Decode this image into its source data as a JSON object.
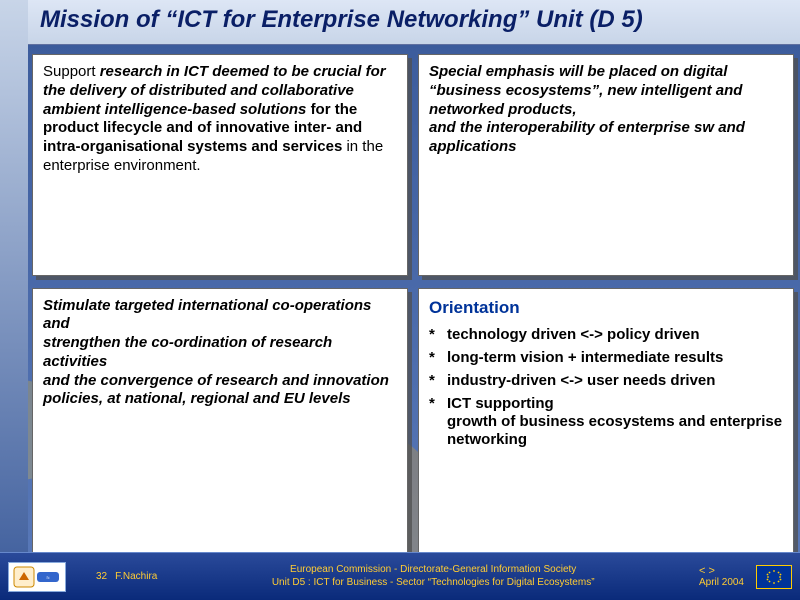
{
  "title": "Mission of “ICT for Enterprise Networking” Unit (D 5)",
  "box1_html": "Support <b><i>research in ICT deemed to be crucial for the delivery of distributed and collaborative ambient intelligence-based solutions</i></b> <b>for the product lifecycle and of innovative inter- and intra-organisational systems and services</b> in the enterprise environment.",
  "box2_html": "Special emphasis will be placed on digital “business ecosystems”, new intelligent and networked products,<br>and the interoperability of enterprise sw and applications",
  "box3_html": "Stimulate targeted international co-operations and<br>strengthen the co-ordination of research activities<br>and the convergence of research and innovation policies, at national, regional and EU levels",
  "orientation": {
    "heading": "Orientation",
    "items": [
      "technology driven <-> policy driven",
      "long-term vision + intermediate results",
      "industry-driven <-> user needs driven",
      "ICT supporting<br>growth of business ecosystems and enterprise networking"
    ]
  },
  "footer": {
    "page": "32",
    "author": "F.Nachira",
    "line1": "European Commission - Directorate-General Information Society",
    "line2": "Unit D5 : ICT for Business - Sector “Technologies for Digital Ecosystems”",
    "arrows": "< >",
    "date": "April 2004",
    "logo_left_label": "Information Society"
  },
  "colors": {
    "title_color": "#0a1f66",
    "accent_yellow": "#ffcc33",
    "eu_blue": "#003399",
    "box_bg": "#ffffff",
    "box_shadow": "rgba(80,80,80,0.75)"
  }
}
